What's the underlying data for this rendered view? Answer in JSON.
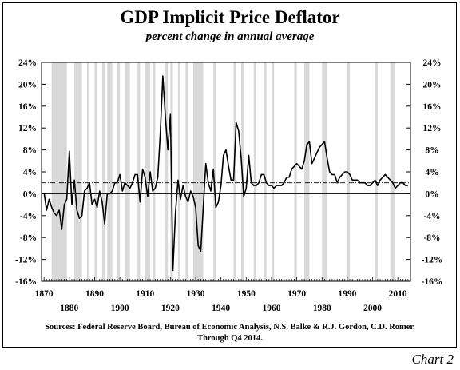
{
  "chart_data": {
    "type": "line",
    "title": "GDP Implicit Price Deflator",
    "subtitle": "percent change in annual average",
    "xlim": [
      1869,
      2015
    ],
    "ylim": [
      -16,
      24
    ],
    "grid": false,
    "legend": "none",
    "y_ticks": [
      "24%",
      "20%",
      "16%",
      "12%",
      "8%",
      "4%",
      "0%",
      "-4%",
      "-8%",
      "-12%",
      "-16%"
    ],
    "y_tick_values": [
      24,
      20,
      16,
      12,
      8,
      4,
      0,
      -4,
      -8,
      -12,
      -16
    ],
    "x_ticks_upper": [
      "1870",
      "1890",
      "1910",
      "1930",
      "1950",
      "1970",
      "1990",
      "2010"
    ],
    "x_ticks_upper_values": [
      1870,
      1890,
      1910,
      1930,
      1950,
      1970,
      1990,
      2010
    ],
    "x_ticks_lower": [
      "1880",
      "1900",
      "1920",
      "1940",
      "1960",
      "1980",
      "2000"
    ],
    "x_ticks_lower_values": [
      1880,
      1900,
      1920,
      1940,
      1960,
      1980,
      2000
    ],
    "reference_line": 2,
    "zero_line": 0,
    "recessions": [
      [
        1873,
        1879
      ],
      [
        1882,
        1885
      ],
      [
        1887,
        1888
      ],
      [
        1890,
        1891
      ],
      [
        1893,
        1894
      ],
      [
        1895,
        1897
      ],
      [
        1899,
        1900
      ],
      [
        1902,
        1904
      ],
      [
        1907,
        1908
      ],
      [
        1910,
        1912
      ],
      [
        1913,
        1914
      ],
      [
        1918,
        1919
      ],
      [
        1920,
        1921
      ],
      [
        1923,
        1924
      ],
      [
        1926,
        1927
      ],
      [
        1929,
        1933
      ],
      [
        1937,
        1938
      ],
      [
        1945,
        1946
      ],
      [
        1948,
        1949
      ],
      [
        1953,
        1954
      ],
      [
        1957,
        1958
      ],
      [
        1960,
        1961
      ],
      [
        1969,
        1970
      ],
      [
        1973,
        1975
      ],
      [
        1980,
        1981
      ],
      [
        1981,
        1982
      ],
      [
        1990,
        1991
      ],
      [
        2001,
        2002
      ],
      [
        2007,
        2009
      ]
    ],
    "series": [
      {
        "x": [
          1870,
          1871,
          1872,
          1873,
          1874,
          1875,
          1876,
          1877,
          1878,
          1879,
          1880,
          1881,
          1882,
          1883,
          1884,
          1885,
          1886,
          1887,
          1888,
          1889,
          1890,
          1891,
          1892,
          1893,
          1894,
          1895,
          1896,
          1897,
          1898,
          1899,
          1900,
          1901,
          1902,
          1903,
          1904,
          1905,
          1906,
          1907,
          1908,
          1909,
          1910,
          1911,
          1912,
          1913,
          1914,
          1915,
          1916,
          1917,
          1918,
          1919,
          1920,
          1921,
          1922,
          1923,
          1924,
          1925,
          1926,
          1927,
          1928,
          1929,
          1930,
          1931,
          1932,
          1933,
          1934,
          1935,
          1936,
          1937,
          1938,
          1939,
          1940,
          1941,
          1942,
          1943,
          1944,
          1945,
          1946,
          1947,
          1948,
          1949,
          1950,
          1951,
          1952,
          1953,
          1954,
          1955,
          1956,
          1957,
          1958,
          1959,
          1960,
          1961,
          1962,
          1963,
          1964,
          1965,
          1966,
          1967,
          1968,
          1969,
          1970,
          1971,
          1972,
          1973,
          1974,
          1975,
          1976,
          1977,
          1978,
          1979,
          1980,
          1981,
          1982,
          1983,
          1984,
          1985,
          1986,
          1987,
          1988,
          1989,
          1990,
          1991,
          1992,
          1993,
          1994,
          1995,
          1996,
          1997,
          1998,
          1999,
          2000,
          2001,
          2002,
          2003,
          2004,
          2005,
          2006,
          2007,
          2008,
          2009,
          2010,
          2011,
          2012,
          2013,
          2014
        ],
        "values": [
          0.2,
          -3.0,
          -1.0,
          -2.5,
          -3.5,
          -4.0,
          -3.0,
          -6.5,
          -2.0,
          -1.0,
          7.8,
          -2.0,
          2.5,
          -3.0,
          -4.5,
          -4.0,
          0.5,
          1.0,
          2.0,
          -2.0,
          -1.0,
          -2.5,
          0.5,
          -1.5,
          -5.5,
          0.0,
          0.0,
          0.5,
          2.0,
          2.0,
          3.5,
          0.5,
          2.0,
          1.5,
          1.0,
          2.0,
          3.5,
          3.5,
          -1.5,
          4.5,
          3.0,
          -0.5,
          4.0,
          0.5,
          1.0,
          3.0,
          11.0,
          21.5,
          14.0,
          8.0,
          14.5,
          -14.0,
          -3.5,
          2.5,
          -1.0,
          1.5,
          -0.5,
          -1.5,
          0.5,
          -0.5,
          -2.5,
          -9.5,
          -10.5,
          -2.5,
          5.5,
          2.0,
          0.5,
          4.5,
          -2.5,
          -1.5,
          1.5,
          7.0,
          8.0,
          5.0,
          2.5,
          2.5,
          13.0,
          11.5,
          6.5,
          -0.5,
          1.0,
          7.0,
          2.0,
          1.5,
          1.5,
          2.0,
          3.5,
          3.5,
          2.0,
          1.5,
          1.5,
          1.0,
          1.5,
          1.5,
          1.5,
          2.0,
          3.0,
          3.0,
          4.5,
          5.0,
          5.5,
          5.0,
          4.5,
          6.0,
          9.0,
          9.5,
          5.5,
          6.5,
          7.5,
          8.5,
          9.0,
          9.5,
          6.5,
          4.0,
          3.5,
          3.5,
          2.0,
          3.0,
          3.5,
          4.0,
          4.0,
          3.5,
          2.5,
          2.5,
          2.5,
          2.0,
          2.0,
          2.0,
          1.5,
          1.5,
          2.0,
          2.5,
          1.5,
          2.5,
          3.0,
          3.5,
          3.0,
          2.5,
          2.0,
          1.0,
          1.5,
          2.0,
          2.0,
          1.5,
          1.5
        ]
      }
    ]
  },
  "source_text": {
    "line1": "Sources: Federal Reserve Board, Bureau of Economic Analysis, N.S. Balke & R.J. Gordon, C.D. Romer.",
    "line2": "Through Q4 2014."
  },
  "chart_number": "Chart 2"
}
